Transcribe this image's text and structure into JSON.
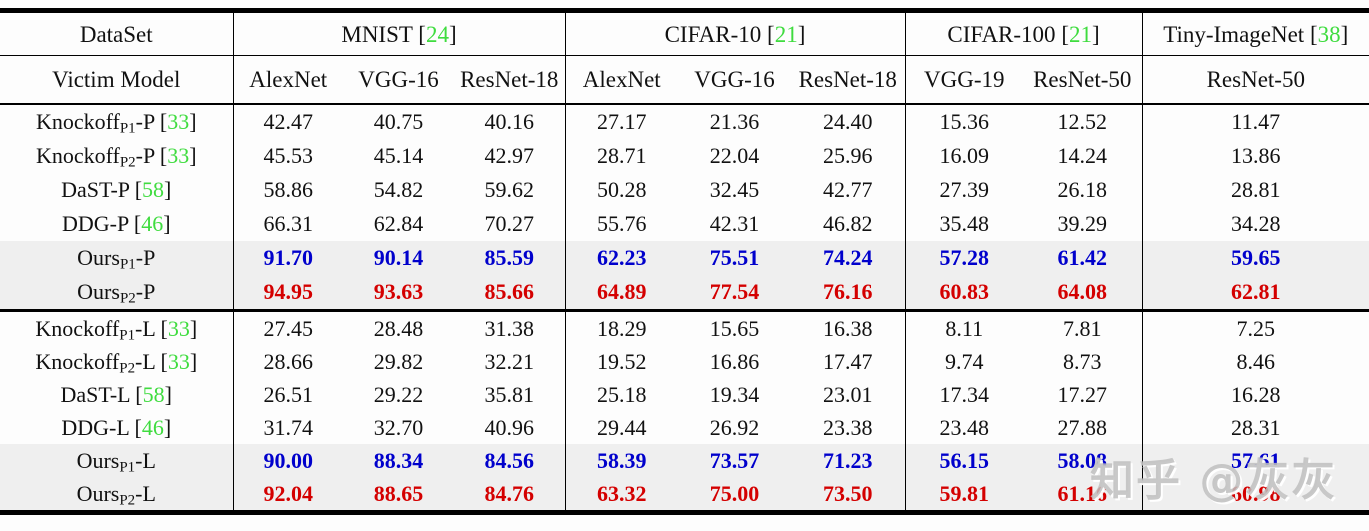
{
  "page": {
    "watermark_text": "知乎 @灰灰"
  },
  "colors": {
    "citation_green": "#3fdc3f",
    "ours_p1_blue": "#0000cc",
    "ours_p2_red": "#d40000",
    "highlight_row_gray": "#efefef",
    "rule_black": "#000000",
    "page_background": "#fdfdfd"
  },
  "table": {
    "header": {
      "dataset_label": "DataSet",
      "victim_label": "Victim Model",
      "groups": [
        {
          "name": "MNIST",
          "parts": [
            {
              "t": "MNIST "
            },
            {
              "t": "["
            },
            {
              "t": "24",
              "c": "green"
            },
            {
              "t": "]"
            }
          ]
        },
        {
          "name": "CIFAR-10",
          "parts": [
            {
              "t": "CIFAR-10 "
            },
            {
              "t": "["
            },
            {
              "t": "21",
              "c": "green"
            },
            {
              "t": "]"
            }
          ]
        },
        {
          "name": "CIFAR-100",
          "parts": [
            {
              "t": "CIFAR-100 "
            },
            {
              "t": "["
            },
            {
              "t": "21",
              "c": "green"
            },
            {
              "t": "]"
            }
          ]
        },
        {
          "name": "Tiny-ImageNet",
          "parts": [
            {
              "t": "Tiny-ImageNet "
            },
            {
              "t": "["
            },
            {
              "t": "38",
              "c": "green"
            },
            {
              "t": "]"
            }
          ]
        }
      ],
      "models": [
        "AlexNet",
        "VGG-16",
        "ResNet-18",
        "AlexNet",
        "VGG-16",
        "ResNet-18",
        "VGG-19",
        "ResNet-50",
        "ResNet-50"
      ]
    },
    "sections": [
      {
        "id": "probability-block",
        "rows": [
          {
            "name_parts": [
              {
                "t": "Knockoff"
              },
              {
                "t": "P1",
                "sub": true
              },
              {
                "t": "-P "
              },
              {
                "t": "["
              },
              {
                "t": "33",
                "c": "green"
              },
              {
                "t": "]"
              }
            ],
            "values": [
              "42.47",
              "40.75",
              "40.16",
              "27.17",
              "21.36",
              "24.40",
              "15.36",
              "12.52",
              "11.47"
            ],
            "value_style": "plain",
            "highlight": false
          },
          {
            "name_parts": [
              {
                "t": "Knockoff"
              },
              {
                "t": "P2",
                "sub": true
              },
              {
                "t": "-P "
              },
              {
                "t": "["
              },
              {
                "t": "33",
                "c": "green"
              },
              {
                "t": "]"
              }
            ],
            "values": [
              "45.53",
              "45.14",
              "42.97",
              "28.71",
              "22.04",
              "25.96",
              "16.09",
              "14.24",
              "13.86"
            ],
            "value_style": "plain",
            "highlight": false
          },
          {
            "name_parts": [
              {
                "t": "DaST-P "
              },
              {
                "t": "["
              },
              {
                "t": "58",
                "c": "green"
              },
              {
                "t": "]"
              }
            ],
            "values": [
              "58.86",
              "54.82",
              "59.62",
              "50.28",
              "32.45",
              "42.77",
              "27.39",
              "26.18",
              "28.81"
            ],
            "value_style": "plain",
            "highlight": false
          },
          {
            "name_parts": [
              {
                "t": "DDG-P "
              },
              {
                "t": "["
              },
              {
                "t": "46",
                "c": "green"
              },
              {
                "t": "]"
              }
            ],
            "values": [
              "66.31",
              "62.84",
              "70.27",
              "55.76",
              "42.31",
              "46.82",
              "35.48",
              "39.29",
              "34.28"
            ],
            "value_style": "plain",
            "highlight": false
          },
          {
            "name_parts": [
              {
                "t": "Ours"
              },
              {
                "t": "P1",
                "sub": true
              },
              {
                "t": "-P"
              }
            ],
            "values": [
              "91.70",
              "90.14",
              "85.59",
              "62.23",
              "75.51",
              "74.24",
              "57.28",
              "61.42",
              "59.65"
            ],
            "value_style": "blue",
            "highlight": true
          },
          {
            "name_parts": [
              {
                "t": "Ours"
              },
              {
                "t": "P2",
                "sub": true
              },
              {
                "t": "-P"
              }
            ],
            "values": [
              "94.95",
              "93.63",
              "85.66",
              "64.89",
              "77.54",
              "76.16",
              "60.83",
              "64.08",
              "62.81"
            ],
            "value_style": "red",
            "highlight": true
          }
        ]
      },
      {
        "id": "label-block",
        "rows": [
          {
            "name_parts": [
              {
                "t": "Knockoff"
              },
              {
                "t": "P1",
                "sub": true
              },
              {
                "t": "-L "
              },
              {
                "t": "["
              },
              {
                "t": "33",
                "c": "green"
              },
              {
                "t": "]"
              }
            ],
            "values": [
              "27.45",
              "28.48",
              "31.38",
              "18.29",
              "15.65",
              "16.38",
              "8.11",
              "7.81",
              "7.25"
            ],
            "value_style": "plain",
            "highlight": false
          },
          {
            "name_parts": [
              {
                "t": "Knockoff"
              },
              {
                "t": "P2",
                "sub": true
              },
              {
                "t": "-L "
              },
              {
                "t": "["
              },
              {
                "t": "33",
                "c": "green"
              },
              {
                "t": "]"
              }
            ],
            "values": [
              "28.66",
              "29.82",
              "32.21",
              "19.52",
              "16.86",
              "17.47",
              "9.74",
              "8.73",
              "8.46"
            ],
            "value_style": "plain",
            "highlight": false
          },
          {
            "name_parts": [
              {
                "t": "DaST-L "
              },
              {
                "t": "["
              },
              {
                "t": "58",
                "c": "green"
              },
              {
                "t": "]"
              }
            ],
            "values": [
              "26.51",
              "29.22",
              "35.81",
              "25.18",
              "19.34",
              "23.01",
              "17.34",
              "17.27",
              "16.28"
            ],
            "value_style": "plain",
            "highlight": false
          },
          {
            "name_parts": [
              {
                "t": "DDG-L "
              },
              {
                "t": "["
              },
              {
                "t": "46",
                "c": "green"
              },
              {
                "t": "]"
              }
            ],
            "values": [
              "31.74",
              "32.70",
              "40.96",
              "29.44",
              "26.92",
              "23.38",
              "23.48",
              "27.88",
              "28.31"
            ],
            "value_style": "plain",
            "highlight": false
          },
          {
            "name_parts": [
              {
                "t": "Ours"
              },
              {
                "t": "P1",
                "sub": true
              },
              {
                "t": "-L"
              }
            ],
            "values": [
              "90.00",
              "88.34",
              "84.56",
              "58.39",
              "73.57",
              "71.23",
              "56.15",
              "58.08",
              "57.61"
            ],
            "value_style": "blue",
            "highlight": true
          },
          {
            "name_parts": [
              {
                "t": "Ours"
              },
              {
                "t": "P2",
                "sub": true
              },
              {
                "t": "-L"
              }
            ],
            "values": [
              "92.04",
              "88.65",
              "84.76",
              "63.32",
              "75.00",
              "73.50",
              "59.81",
              "61.16",
              "60.98"
            ],
            "value_style": "red",
            "highlight": true
          }
        ]
      }
    ]
  }
}
